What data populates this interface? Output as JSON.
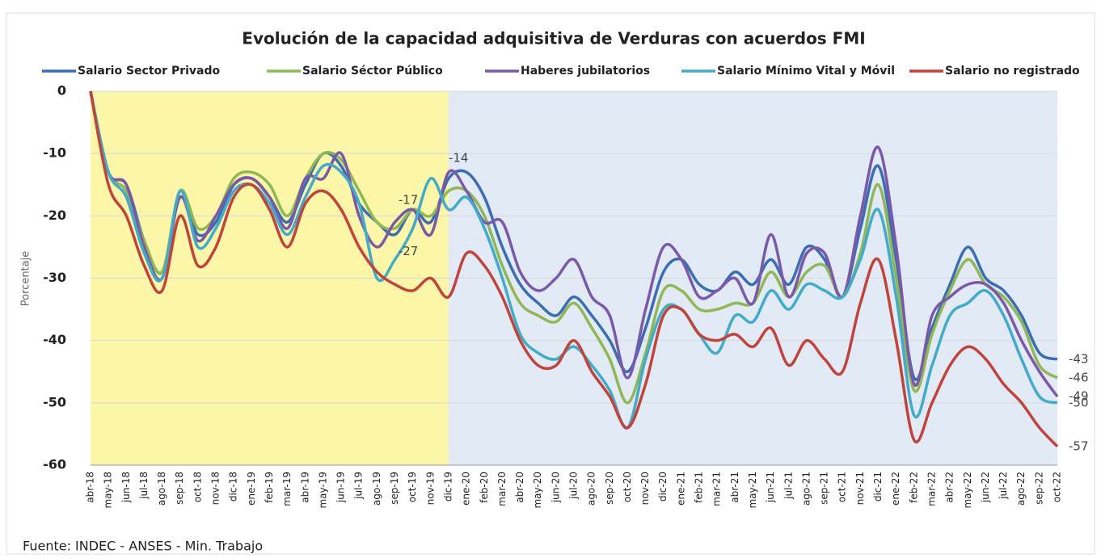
{
  "chart_data": {
    "type": "line",
    "title": "Evolución de la capacidad adquisitiva de Verduras con acuerdos FMI",
    "y_label": "Porcentaje",
    "source": "Fuente: INDEC - ANSES - Min. Trabajo",
    "categories": [
      "abr-18",
      "may-18",
      "jun-18",
      "jul-18",
      "ago-18",
      "sep-18",
      "oct-18",
      "nov-18",
      "dic-18",
      "ene-19",
      "feb-19",
      "mar-19",
      "abr-19",
      "may-19",
      "jun-19",
      "jul-19",
      "ago-19",
      "sep-19",
      "oct-19",
      "nov-19",
      "dic-19",
      "ene-20",
      "feb-20",
      "mar-20",
      "abr-20",
      "may-20",
      "jun-20",
      "jul-20",
      "ago-20",
      "sep-20",
      "oct-20",
      "nov-20",
      "dic-20",
      "ene-21",
      "feb-21",
      "mar-21",
      "abr-21",
      "may-21",
      "jun-21",
      "jul-21",
      "ago-21",
      "sep-21",
      "oct-21",
      "nov-21",
      "dic-21",
      "ene-22",
      "feb-22",
      "mar-22",
      "abr-22",
      "may-22",
      "jun-22",
      "jul-22",
      "ago-22",
      "sep-22",
      "oct-22"
    ],
    "series": [
      {
        "name": "Salario Sector Privado",
        "color": "#3b6db3",
        "values": [
          0,
          -13,
          -15,
          -24,
          -29,
          -17,
          -23,
          -21,
          -15,
          -14,
          -17,
          -21,
          -15,
          -10,
          -12,
          -18,
          -21,
          -23,
          -19,
          -21,
          -14,
          -13,
          -17,
          -25,
          -31,
          -34,
          -36,
          -33,
          -36,
          -40,
          -45,
          -38,
          -29,
          -27,
          -31,
          -32,
          -29,
          -31,
          -27,
          -31,
          -25,
          -27,
          -33,
          -22,
          -12,
          -27,
          -46,
          -38,
          -31,
          -25,
          -30,
          -32,
          -36,
          -42,
          -43
        ]
      },
      {
        "name": "Salario Séctor Público",
        "color": "#8fb855",
        "values": [
          0,
          -13,
          -16,
          -24,
          -29,
          -16,
          -22,
          -20,
          -14,
          -13,
          -15,
          -20,
          -14,
          -10,
          -11,
          -16,
          -21,
          -22,
          -19,
          -20,
          -16,
          -16,
          -20,
          -28,
          -34,
          -36,
          -37,
          -34,
          -38,
          -43,
          -50,
          -42,
          -32,
          -32,
          -35,
          -35,
          -34,
          -34,
          -29,
          -33,
          -29,
          -28,
          -33,
          -26,
          -15,
          -30,
          -48,
          -39,
          -32,
          -27,
          -31,
          -33,
          -37,
          -44,
          -46
        ]
      },
      {
        "name": "Haberes jubilatorios",
        "color": "#7b59a8",
        "values": [
          0,
          -13,
          -15,
          -25,
          -30,
          -17,
          -24,
          -20,
          -15,
          -14,
          -17,
          -22,
          -14,
          -14,
          -10,
          -20,
          -25,
          -21,
          -19,
          -23,
          -13,
          -16,
          -21,
          -21,
          -29,
          -32,
          -30,
          -27,
          -33,
          -36,
          -46,
          -35,
          -25,
          -27,
          -33,
          -32,
          -30,
          -34,
          -23,
          -33,
          -26,
          -26,
          -33,
          -20,
          -9,
          -25,
          -47,
          -36,
          -33,
          -31,
          -31,
          -34,
          -40,
          -45,
          -49
        ]
      },
      {
        "name": "Salario Mínimo Vital y Móvil",
        "color": "#42abc9",
        "values": [
          0,
          -13,
          -17,
          -26,
          -30,
          -16,
          -25,
          -22,
          -16,
          -15,
          -18,
          -23,
          -17,
          -12,
          -13,
          -18,
          -30,
          -27,
          -22,
          -14,
          -19,
          -17,
          -22,
          -30,
          -39,
          -42,
          -43,
          -41,
          -44,
          -48,
          -54,
          -43,
          -35,
          -35,
          -39,
          -42,
          -36,
          -37,
          -32,
          -35,
          -31,
          -32,
          -33,
          -27,
          -19,
          -33,
          -52,
          -44,
          -36,
          -34,
          -32,
          -36,
          -43,
          -49,
          -50
        ]
      },
      {
        "name": "Salario no registrado",
        "color": "#c0443c",
        "values": [
          0,
          -15,
          -20,
          -28,
          -32,
          -20,
          -28,
          -25,
          -17,
          -15,
          -19,
          -25,
          -18,
          -16,
          -19,
          -25,
          -29,
          -31,
          -32,
          -30,
          -33,
          -26,
          -28,
          -33,
          -40,
          -44,
          -44,
          -40,
          -45,
          -49,
          -54,
          -47,
          -36,
          -35,
          -39,
          -40,
          -39,
          -41,
          -38,
          -44,
          -40,
          -43,
          -45,
          -34,
          -27,
          -40,
          -56,
          -50,
          -44,
          -41,
          -43,
          -47,
          -50,
          -54,
          -57
        ]
      }
    ],
    "annotations": [
      {
        "x": "dic-19",
        "value": -14
      },
      {
        "x": "nov-19",
        "value": -17
      },
      {
        "x": "nov-19",
        "value": -27
      },
      {
        "x": "oct-22",
        "value": -43
      },
      {
        "x": "oct-22",
        "value": -46
      },
      {
        "x": "oct-22",
        "value": -49
      },
      {
        "x": "oct-22",
        "value": -50
      },
      {
        "x": "oct-22",
        "value": -57
      }
    ],
    "regions": [
      {
        "from": "abr-18",
        "to": "dic-19",
        "color": "#fbf6a8"
      },
      {
        "from": "dic-19",
        "to": "oct-22",
        "color": "#e2eaf6"
      }
    ],
    "ylim": [
      -60,
      0
    ],
    "yticks": [
      0,
      -10,
      -20,
      -30,
      -40,
      -50,
      -60
    ],
    "grid": true
  }
}
